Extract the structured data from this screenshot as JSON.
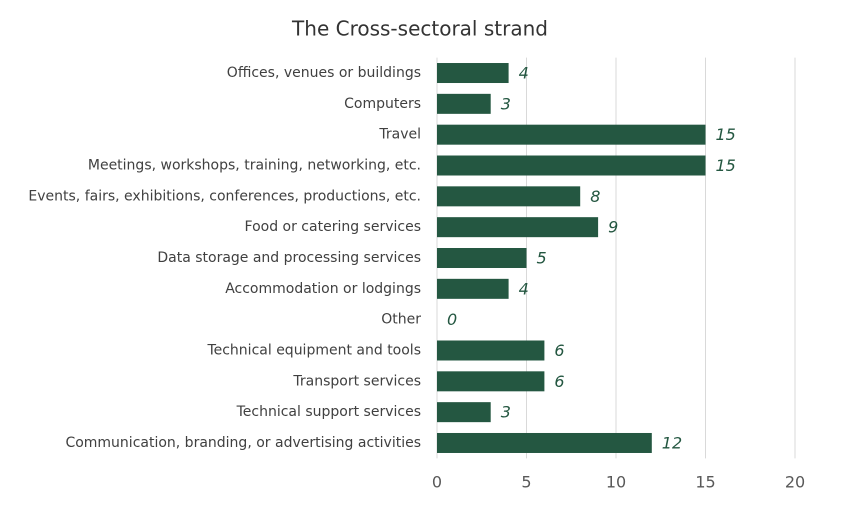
{
  "chart_data": {
    "type": "bar",
    "orientation": "horizontal",
    "title": "The Cross-sectoral strand",
    "categories": [
      "Offices, venues or buildings",
      "Computers",
      "Travel",
      "Meetings, workshops, training, networking, etc.",
      "Events, fairs, exhibitions, conferences, productions, etc.",
      "Food or catering services",
      "Data storage and processing services",
      "Accommodation or lodgings",
      "Other",
      "Technical equipment and tools",
      "Transport services",
      "Technical support services",
      "Communication, branding, or advertising activities"
    ],
    "values": [
      4,
      3,
      15,
      15,
      8,
      9,
      5,
      4,
      0,
      6,
      6,
      3,
      12
    ],
    "color": "#245741",
    "xlim": [
      0,
      20
    ],
    "xticks": [
      0,
      5,
      10,
      15,
      20
    ],
    "grid": true
  }
}
